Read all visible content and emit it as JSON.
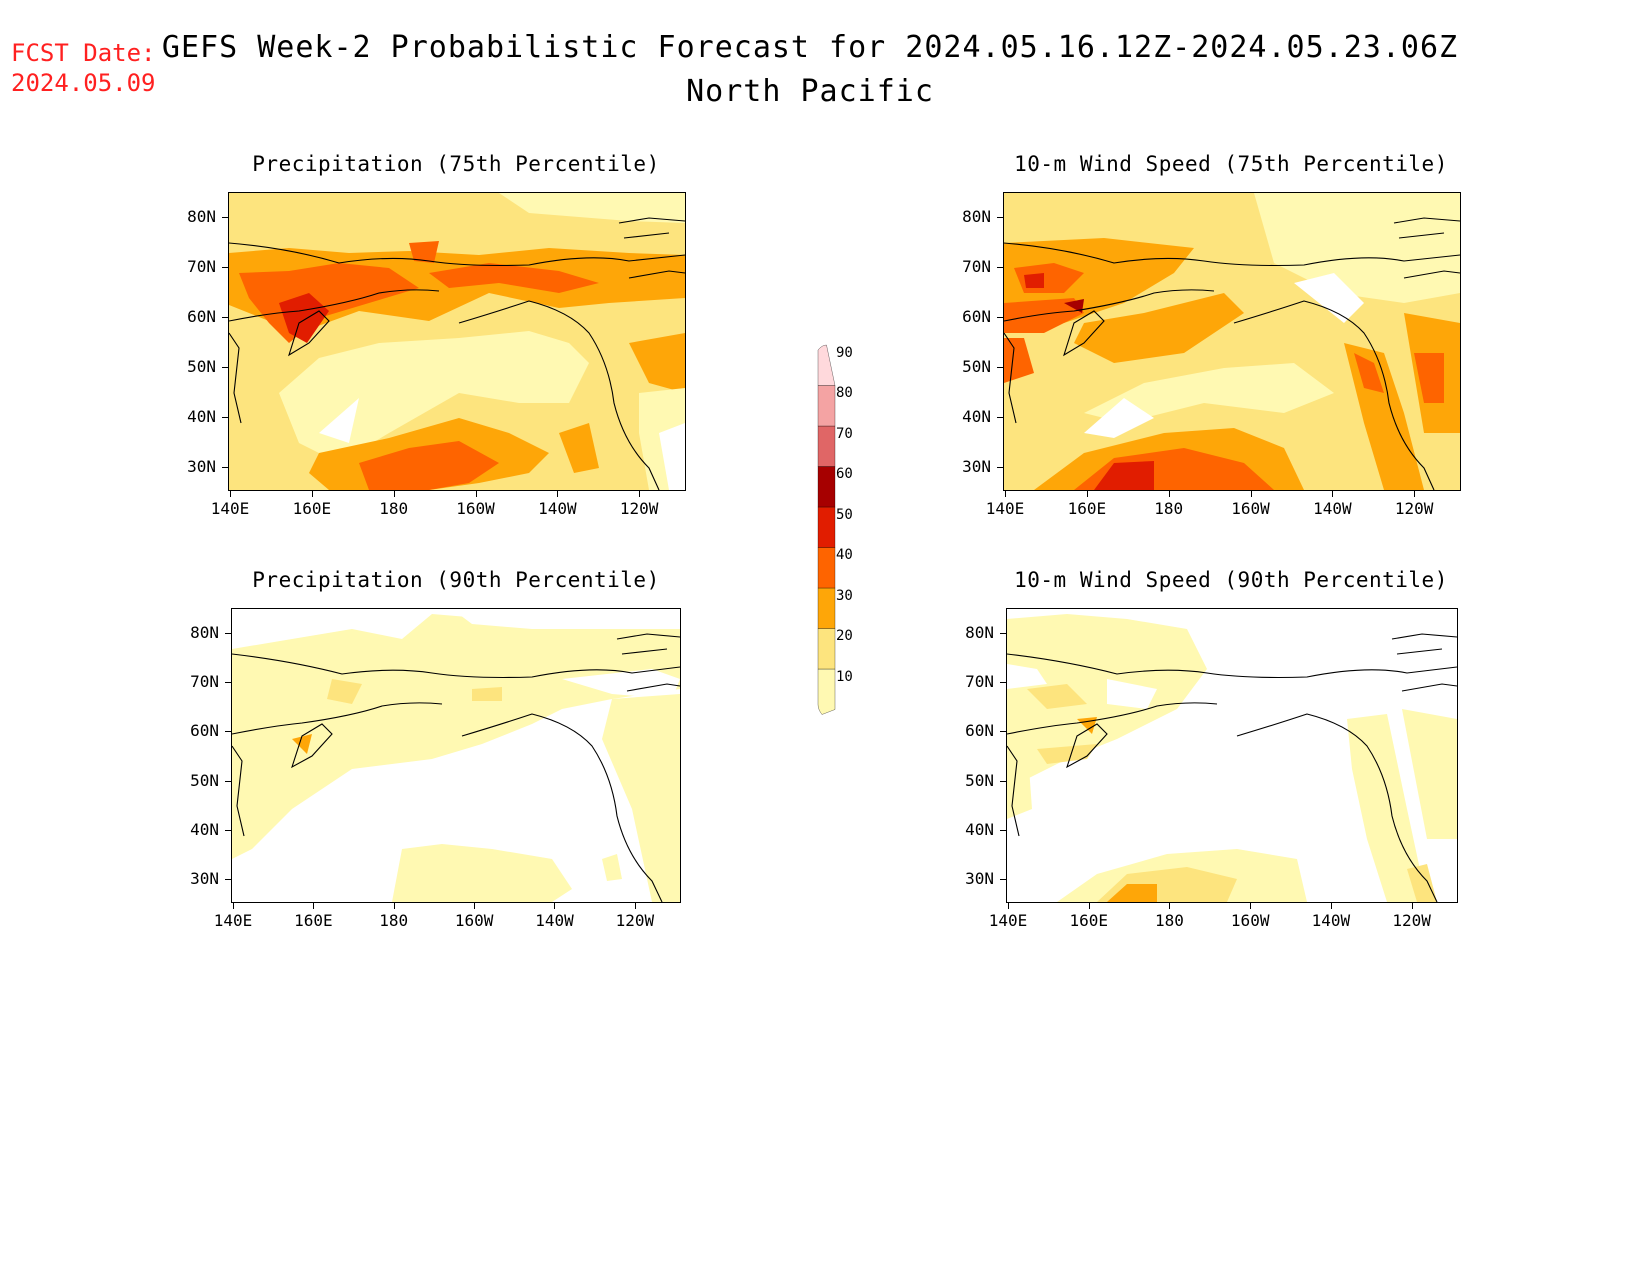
{
  "header": {
    "fcst_label": "FCST Date:",
    "fcst_date": "2024.05.09",
    "title": "GEFS Week-2 Probabilistic Forecast for 2024.05.16.12Z-2024.05.23.06Z",
    "subtitle": "North Pacific"
  },
  "panels": [
    {
      "id": "precip75",
      "title": "Precipitation (75th Percentile)"
    },
    {
      "id": "wind75",
      "title": "10-m Wind Speed (75th Percentile)"
    },
    {
      "id": "precip90",
      "title": "Precipitation (90th Percentile)"
    },
    {
      "id": "wind90",
      "title": "10-m Wind Speed (90th Percentile)"
    }
  ],
  "lat_labels": [
    "80N",
    "70N",
    "60N",
    "50N",
    "40N",
    "30N"
  ],
  "lon_labels": [
    "140E",
    "160E",
    "180",
    "160W",
    "140W",
    "120W"
  ],
  "colorbar": {
    "levels": [
      "10",
      "20",
      "30",
      "40",
      "50",
      "60",
      "70",
      "80",
      "90"
    ],
    "colors": [
      "#fff9b2",
      "#fde47e",
      "#fea608",
      "#fe6400",
      "#e11d00",
      "#a60000",
      "#e06666",
      "#f4a3a3",
      "#ffd9dc"
    ]
  }
}
